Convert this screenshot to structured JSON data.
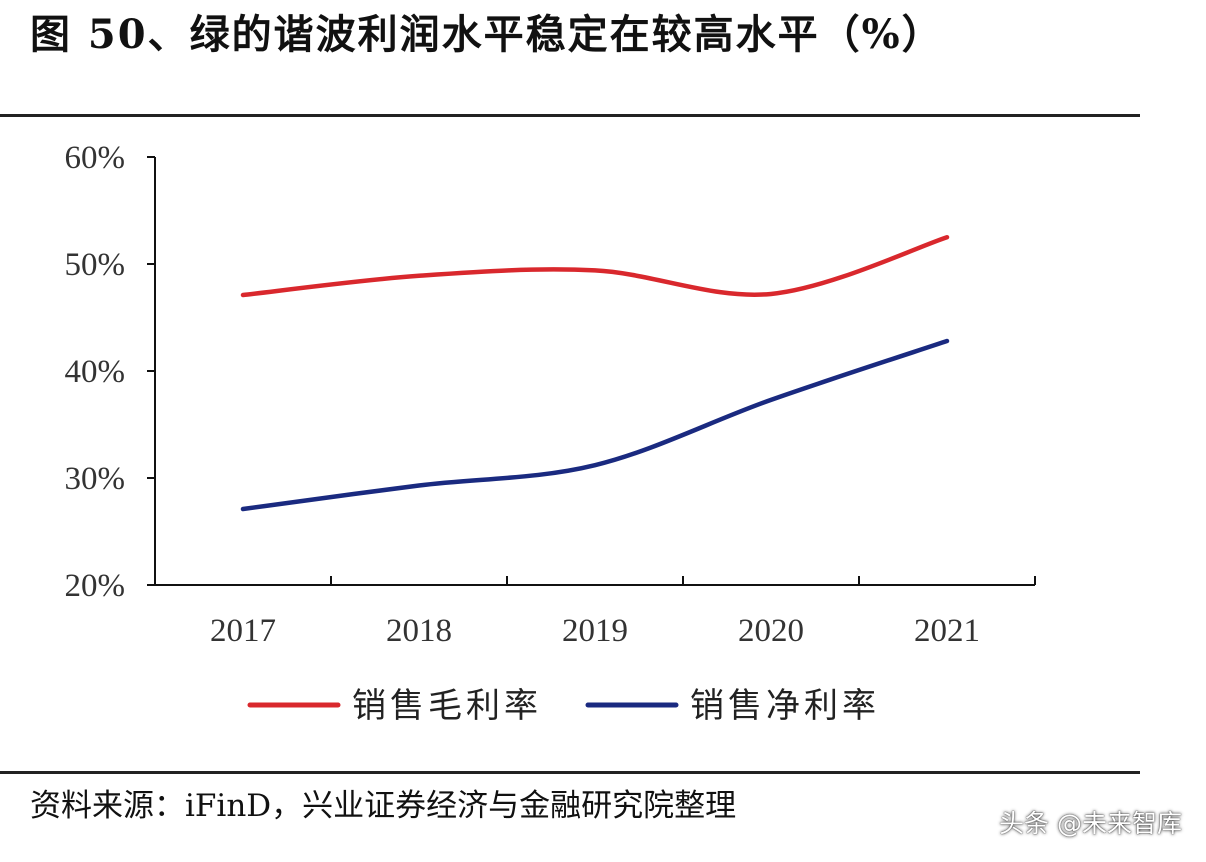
{
  "title": "图 50、绿的谐波利润水平稳定在较高水平（%）",
  "source": "资料来源：iFinD，兴业证券经济与金融研究院整理",
  "watermark": "头条 @未来智库",
  "chart_data": {
    "type": "line",
    "x": [
      "2017",
      "2018",
      "2019",
      "2020",
      "2021"
    ],
    "series": [
      {
        "name": "销售毛利率",
        "values": [
          47.1,
          48.9,
          49.4,
          47.2,
          52.5
        ],
        "color": "#d9282d"
      },
      {
        "name": "销售净利率",
        "values": [
          27.1,
          29.3,
          31.2,
          37.3,
          42.8
        ],
        "color": "#1a2a80"
      }
    ],
    "ylim": [
      20,
      60
    ],
    "yticks": [
      "20%",
      "30%",
      "40%",
      "50%",
      "60%"
    ],
    "grid": false,
    "legend": "bottom",
    "xlabel": "",
    "ylabel": ""
  }
}
